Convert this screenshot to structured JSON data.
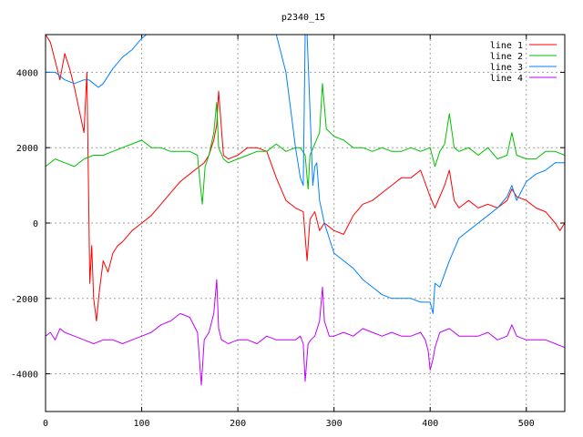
{
  "chart_data": {
    "type": "line",
    "title": "p2340_15",
    "xlabel": "",
    "ylabel": "",
    "xlim": [
      0,
      540
    ],
    "ylim": [
      -5000,
      5000
    ],
    "xticks": [
      0,
      100,
      200,
      300,
      400,
      500
    ],
    "yticks": [
      -4000,
      -2000,
      0,
      2000,
      4000
    ],
    "grid": true,
    "legend_position": "top-right",
    "series": [
      {
        "name": "line 1",
        "color": "#ff0000",
        "x": [
          0,
          5,
          10,
          15,
          20,
          25,
          30,
          35,
          40,
          43,
          46,
          48,
          50,
          53,
          56,
          60,
          65,
          70,
          75,
          80,
          90,
          100,
          110,
          120,
          130,
          140,
          150,
          160,
          165,
          170,
          175,
          178,
          180,
          185,
          190,
          200,
          210,
          220,
          230,
          240,
          250,
          260,
          268,
          272,
          275,
          280,
          285,
          290,
          300,
          310,
          320,
          330,
          340,
          350,
          360,
          370,
          380,
          390,
          400,
          405,
          410,
          415,
          420,
          425,
          430,
          440,
          450,
          460,
          470,
          480,
          485,
          490,
          500,
          510,
          520,
          530,
          535,
          540
        ],
        "y": [
          5000,
          4800,
          4300,
          3800,
          4500,
          4100,
          3600,
          3000,
          2400,
          4000,
          -1600,
          -600,
          -2000,
          -2600,
          -1800,
          -1000,
          -1300,
          -800,
          -600,
          -500,
          -200,
          0,
          200,
          500,
          800,
          1100,
          1300,
          1500,
          1600,
          1800,
          2200,
          2600,
          3500,
          1800,
          1700,
          1800,
          2000,
          2000,
          1900,
          1200,
          600,
          400,
          300,
          -1000,
          100,
          300,
          -200,
          0,
          -200,
          -300,
          200,
          500,
          600,
          800,
          1000,
          1200,
          1200,
          1400,
          700,
          400,
          700,
          1000,
          1400,
          600,
          400,
          600,
          400,
          500,
          400,
          600,
          900,
          700,
          600,
          400,
          300,
          0,
          -200,
          0
        ]
      },
      {
        "name": "line 2",
        "color": "#00c000",
        "x": [
          0,
          10,
          20,
          30,
          40,
          50,
          60,
          70,
          80,
          90,
          100,
          110,
          120,
          130,
          140,
          150,
          158,
          161,
          163,
          166,
          170,
          175,
          178,
          180,
          185,
          190,
          200,
          210,
          220,
          230,
          240,
          250,
          260,
          265,
          270,
          273,
          275,
          280,
          285,
          288,
          292,
          300,
          310,
          320,
          330,
          340,
          350,
          360,
          370,
          380,
          390,
          400,
          405,
          410,
          415,
          420,
          425,
          430,
          440,
          450,
          460,
          470,
          480,
          485,
          490,
          500,
          510,
          520,
          530,
          540
        ],
        "y": [
          1500,
          1700,
          1600,
          1500,
          1700,
          1800,
          1800,
          1900,
          2000,
          2100,
          2200,
          2000,
          2000,
          1900,
          1900,
          1900,
          1800,
          1000,
          500,
          1500,
          1800,
          2400,
          3200,
          2000,
          1700,
          1600,
          1700,
          1800,
          1900,
          1900,
          2100,
          1900,
          2000,
          2000,
          1800,
          900,
          1800,
          2100,
          2400,
          3700,
          2500,
          2300,
          2200,
          2000,
          2000,
          1900,
          2000,
          1900,
          1900,
          2000,
          1900,
          2000,
          1500,
          1900,
          2100,
          2900,
          2000,
          1900,
          2000,
          1800,
          2000,
          1700,
          1800,
          2400,
          1800,
          1700,
          1700,
          1900,
          1900,
          1800
        ]
      },
      {
        "name": "line 3",
        "color": "#0080ff",
        "x": [
          0,
          10,
          20,
          30,
          40,
          45,
          50,
          55,
          60,
          70,
          80,
          90,
          100,
          105,
          230,
          240,
          250,
          255,
          260,
          265,
          268,
          270,
          272,
          275,
          278,
          280,
          282,
          285,
          290,
          300,
          310,
          320,
          330,
          340,
          350,
          360,
          370,
          380,
          390,
          400,
          403,
          405,
          410,
          420,
          430,
          440,
          450,
          460,
          470,
          480,
          485,
          490,
          500,
          510,
          520,
          530,
          540
        ],
        "y": [
          4000,
          4000,
          3800,
          3700,
          3800,
          3800,
          3700,
          3600,
          3700,
          4100,
          4400,
          4600,
          4900,
          5000,
          5000,
          5000,
          4000,
          3000,
          2000,
          1200,
          1000,
          5000,
          5000,
          3000,
          1000,
          1500,
          1600,
          600,
          0,
          -800,
          -1000,
          -1200,
          -1500,
          -1700,
          -1900,
          -2000,
          -2000,
          -2000,
          -2100,
          -2100,
          -2400,
          -1600,
          -1700,
          -1000,
          -400,
          -200,
          0,
          200,
          400,
          700,
          1000,
          600,
          1100,
          1300,
          1400,
          1600,
          1600
        ]
      },
      {
        "name": "line 4",
        "color": "#c000ff",
        "x": [
          0,
          5,
          10,
          15,
          20,
          30,
          40,
          50,
          60,
          70,
          80,
          90,
          100,
          110,
          120,
          130,
          140,
          150,
          158,
          160,
          162,
          165,
          170,
          175,
          178,
          180,
          183,
          190,
          200,
          210,
          220,
          230,
          240,
          250,
          260,
          265,
          268,
          270,
          273,
          276,
          280,
          285,
          288,
          290,
          295,
          300,
          310,
          320,
          330,
          340,
          350,
          360,
          370,
          380,
          390,
          395,
          398,
          400,
          403,
          405,
          410,
          420,
          430,
          440,
          450,
          460,
          470,
          480,
          485,
          490,
          500,
          510,
          520,
          530,
          540
        ],
        "y": [
          -3000,
          -2900,
          -3100,
          -2800,
          -2900,
          -3000,
          -3100,
          -3200,
          -3100,
          -3100,
          -3200,
          -3100,
          -3000,
          -2900,
          -2700,
          -2600,
          -2400,
          -2500,
          -2900,
          -3600,
          -4300,
          -3100,
          -2900,
          -2400,
          -1500,
          -2800,
          -3100,
          -3200,
          -3100,
          -3100,
          -3200,
          -3000,
          -3100,
          -3100,
          -3100,
          -3000,
          -3200,
          -4200,
          -3200,
          -3100,
          -3000,
          -2600,
          -1700,
          -2600,
          -3000,
          -3000,
          -2900,
          -3000,
          -2800,
          -2900,
          -3000,
          -2900,
          -3000,
          -3000,
          -2900,
          -3100,
          -3400,
          -3900,
          -3600,
          -3300,
          -2900,
          -2800,
          -3000,
          -3000,
          -3000,
          -2900,
          -3100,
          -3000,
          -2700,
          -3000,
          -3100,
          -3100,
          -3100,
          -3200,
          -3300
        ]
      }
    ]
  }
}
